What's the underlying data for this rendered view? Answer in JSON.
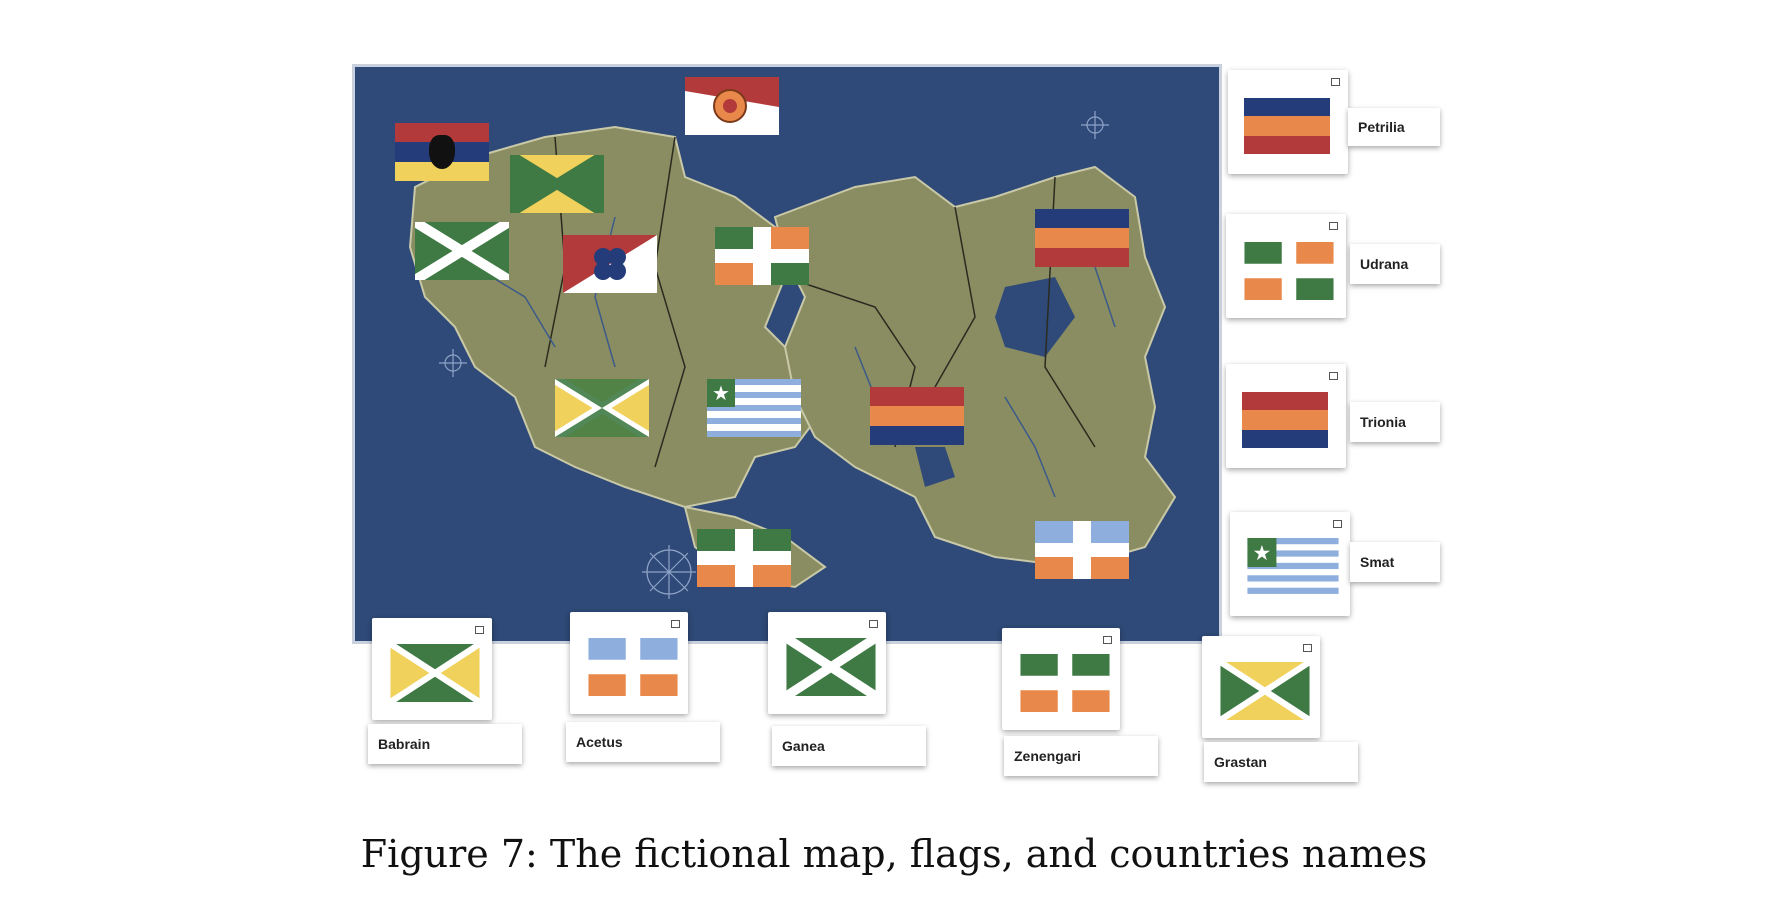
{
  "caption": "Figure 7: The fictional map, flags, and countries names",
  "colors": {
    "ocean": "#2f4a78",
    "land": "#8a8d62",
    "green": "#3f7a45",
    "yellow": "#f0d15c",
    "orange": "#e8884a",
    "red": "#b33a3a",
    "navy": "#253c7a",
    "lightblue": "#8eaede",
    "white": "#ffffff"
  },
  "countries": [
    {
      "name": "Petrilia",
      "flag": "stripes-navy-orange-red"
    },
    {
      "name": "Udrana",
      "flag": "quarters-green-orange"
    },
    {
      "name": "Trionia",
      "flag": "stripes-red-orange-navy"
    },
    {
      "name": "Smat",
      "flag": "star-stripes-blue"
    },
    {
      "name": "Babrain",
      "flag": "saltire-yellow-green"
    },
    {
      "name": "Acetus",
      "flag": "quarters-blue-orange"
    },
    {
      "name": "Ganea",
      "flag": "saltire-white-green"
    },
    {
      "name": "Zenengari",
      "flag": "quarters-green-orange-b"
    },
    {
      "name": "Grastan",
      "flag": "saltire-green-yellow"
    }
  ],
  "map_flags": [
    {
      "flag": "eagle-tricolor"
    },
    {
      "flag": "rose-diagonal"
    },
    {
      "flag": "saltire-green-yellow"
    },
    {
      "flag": "saltire-white-green"
    },
    {
      "flag": "clover-diagonal"
    },
    {
      "flag": "quarters-green-orange"
    },
    {
      "flag": "stripes-navy-orange-red"
    },
    {
      "flag": "saltire-green-yellow"
    },
    {
      "flag": "star-stripes-blue"
    },
    {
      "flag": "stripes-red-orange-navy"
    },
    {
      "flag": "quarters-green-orange-b"
    },
    {
      "flag": "quarters-blue-orange"
    }
  ]
}
